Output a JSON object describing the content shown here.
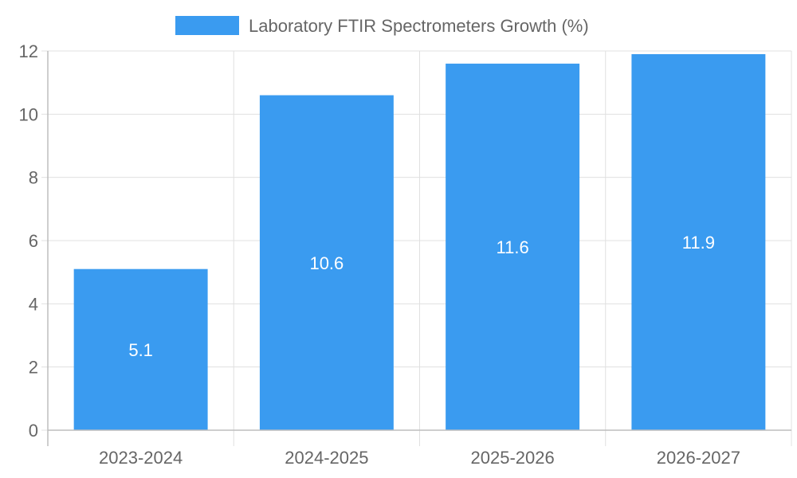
{
  "chart_data": {
    "type": "bar",
    "categories": [
      "2023-2024",
      "2024-2025",
      "2025-2026",
      "2026-2027"
    ],
    "series": [
      {
        "name": "Laboratory FTIR Spectrometers Growth (%)",
        "values": [
          5.1,
          10.6,
          11.6,
          11.9
        ],
        "color": "#3a9bf0"
      }
    ],
    "ylim": [
      0,
      12
    ],
    "yticks": [
      0,
      2,
      4,
      6,
      8,
      10,
      12
    ],
    "grid": true,
    "legend_position": "top-center",
    "data_labels": true
  }
}
